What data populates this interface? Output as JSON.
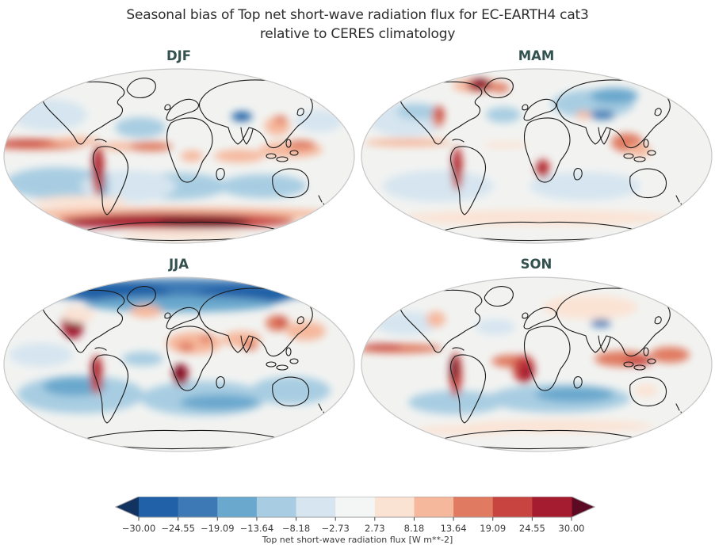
{
  "chart_data": {
    "type": "heatmap",
    "subtype": "global-filled-contour-maps",
    "projection": "robinson",
    "title_line1": "Seasonal bias of Top net short-wave radiation flux for EC-EARTH4 cat3",
    "title_line2": "relative to CERES climatology",
    "variable": "Top net short-wave radiation flux",
    "units": "W m**-2",
    "value_range": [
      -30.0,
      30.0
    ],
    "palette": {
      "b1": "#1f5fa6",
      "b2": "#3d7ab5",
      "b3": "#6aa8cd",
      "b4": "#a8cde2",
      "b5": "#d6e5f0",
      "w": "#f4f5f5",
      "r1": "#fbe3d4",
      "r2": "#f6b89c",
      "r3": "#e07a60",
      "r4": "#c84440",
      "r5": "#a51c30",
      "x": "#701022"
    },
    "colorbar": {
      "label": "Top net short-wave radiation flux [W m**-2]",
      "ticks": [
        "−30.00",
        "−24.55",
        "−19.09",
        "−13.64",
        "−8.18",
        "−2.73",
        "2.73",
        "8.18",
        "13.64",
        "19.09",
        "24.55",
        "30.00"
      ],
      "segment_colors": [
        "#2161a8",
        "#3d7ab5",
        "#6aa8cd",
        "#a8cde2",
        "#d6e5f0",
        "#f4f5f5",
        "#fbe3d4",
        "#f6b89c",
        "#e07a60",
        "#c84440",
        "#a51c30"
      ],
      "extend_left_color": "#12325f",
      "extend_right_color": "#5c0a23",
      "outline_color": "#9a9a9a"
    },
    "panels": [
      {
        "id": "djf",
        "label": "DJF",
        "features": [
          [
            60,
            62,
            48,
            20,
            "b5"
          ],
          [
            175,
            78,
            32,
            13,
            "b4"
          ],
          [
            400,
            70,
            30,
            14,
            "b5"
          ],
          [
            70,
            148,
            65,
            20,
            "b4"
          ],
          [
            220,
            152,
            65,
            17,
            "b4"
          ],
          [
            330,
            152,
            55,
            15,
            "b4"
          ],
          [
            160,
            152,
            60,
            20,
            "b5"
          ],
          [
            128,
            152,
            6,
            22,
            "b3"
          ],
          [
            303,
            64,
            13,
            6,
            "b1"
          ],
          [
            45,
            99,
            62,
            7,
            "r3"
          ],
          [
            28,
            98,
            30,
            4,
            "r4"
          ],
          [
            95,
            95,
            30,
            5,
            "r2"
          ],
          [
            150,
            102,
            25,
            5,
            "r2"
          ],
          [
            188,
            102,
            28,
            6,
            "r3"
          ],
          [
            240,
            114,
            14,
            7,
            "r2"
          ],
          [
            300,
            114,
            32,
            8,
            "r2"
          ],
          [
            365,
            106,
            40,
            10,
            "r2"
          ],
          [
            378,
            100,
            18,
            6,
            "r3"
          ],
          [
            122,
            132,
            8,
            32,
            "r4"
          ],
          [
            120,
            128,
            5,
            22,
            "r5"
          ],
          [
            348,
            76,
            16,
            12,
            "r2"
          ],
          [
            352,
            68,
            8,
            5,
            "r3"
          ],
          [
            100,
            172,
            60,
            8,
            "r1"
          ],
          [
            224,
            187,
            200,
            8,
            "r2"
          ],
          [
            220,
            196,
            150,
            10,
            "r4"
          ],
          [
            185,
            195,
            70,
            8,
            "r5"
          ],
          [
            255,
            197,
            60,
            7,
            "x"
          ],
          [
            120,
            198,
            40,
            6,
            "r5"
          ],
          [
            230,
            214,
            80,
            6,
            "r1"
          ]
        ]
      },
      {
        "id": "mam",
        "label": "MAM",
        "features": [
          [
            60,
            68,
            48,
            22,
            "b5"
          ],
          [
            75,
            58,
            28,
            10,
            "b4"
          ],
          [
            182,
            62,
            22,
            10,
            "b4"
          ],
          [
            295,
            48,
            52,
            18,
            "b4"
          ],
          [
            322,
            38,
            30,
            10,
            "b3"
          ],
          [
            307,
            62,
            16,
            6,
            "b2"
          ],
          [
            100,
            152,
            70,
            20,
            "b5"
          ],
          [
            285,
            152,
            70,
            18,
            "b5"
          ],
          [
            150,
            25,
            32,
            9,
            "r2"
          ],
          [
            152,
            24,
            16,
            8,
            "r5"
          ],
          [
            154,
            22,
            8,
            4,
            "x"
          ],
          [
            178,
            28,
            12,
            6,
            "r3"
          ],
          [
            100,
            64,
            8,
            14,
            "r3"
          ],
          [
            102,
            60,
            5,
            8,
            "r4"
          ],
          [
            124,
            130,
            7,
            28,
            "r4"
          ],
          [
            122,
            126,
            4,
            18,
            "r5"
          ],
          [
            232,
            130,
            9,
            12,
            "r4"
          ],
          [
            230,
            128,
            5,
            8,
            "r5"
          ],
          [
            338,
            97,
            20,
            12,
            "r3"
          ],
          [
            354,
            107,
            15,
            8,
            "r2"
          ],
          [
            62,
            97,
            55,
            5,
            "r2"
          ],
          [
            185,
            100,
            30,
            4,
            "r1"
          ],
          [
            283,
            62,
            10,
            5,
            "r2"
          ],
          [
            224,
            192,
            170,
            10,
            "r1"
          ]
        ]
      },
      {
        "id": "jja",
        "label": "JJA",
        "features": [
          [
            224,
            22,
            170,
            16,
            "b2"
          ],
          [
            152,
            24,
            60,
            12,
            "b1"
          ],
          [
            305,
            27,
            60,
            12,
            "b1"
          ],
          [
            224,
            38,
            120,
            10,
            "b3"
          ],
          [
            100,
            152,
            80,
            24,
            "b4"
          ],
          [
            255,
            157,
            80,
            22,
            "b4"
          ],
          [
            365,
            147,
            50,
            18,
            "b4"
          ],
          [
            92,
            142,
            40,
            12,
            "b3"
          ],
          [
            275,
            162,
            50,
            10,
            "b3"
          ],
          [
            178,
            107,
            26,
            9,
            "b4"
          ],
          [
            50,
            102,
            40,
            15,
            "b5"
          ],
          [
            90,
            62,
            14,
            20,
            "r5"
          ],
          [
            92,
            57,
            8,
            12,
            "x"
          ],
          [
            120,
            127,
            8,
            25,
            "r4"
          ],
          [
            118,
            122,
            5,
            15,
            "r5"
          ],
          [
            226,
            127,
            10,
            14,
            "r5"
          ],
          [
            224,
            124,
            6,
            9,
            "x"
          ],
          [
            243,
            87,
            35,
            14,
            "r2"
          ],
          [
            233,
            92,
            10,
            6,
            "r3"
          ],
          [
            258,
            82,
            8,
            5,
            "r3"
          ],
          [
            303,
            82,
            25,
            10,
            "r2"
          ],
          [
            313,
            90,
            10,
            6,
            "r3"
          ],
          [
            348,
            62,
            15,
            10,
            "r3"
          ],
          [
            352,
            60,
            6,
            5,
            "r4"
          ],
          [
            384,
            72,
            25,
            12,
            "r2"
          ],
          [
            182,
            47,
            20,
            8,
            "r2"
          ],
          [
            97,
            52,
            20,
            10,
            "r1"
          ]
        ]
      },
      {
        "id": "son",
        "label": "SON",
        "features": [
          [
            60,
            62,
            40,
            15,
            "b5"
          ],
          [
            172,
            67,
            25,
            10,
            "b5"
          ],
          [
            252,
            157,
            90,
            18,
            "b4"
          ],
          [
            122,
            162,
            60,
            15,
            "b4"
          ],
          [
            272,
            152,
            50,
            10,
            "b3"
          ],
          [
            305,
            62,
            13,
            5,
            "b2"
          ],
          [
            292,
            42,
            60,
            15,
            "r1"
          ],
          [
            50,
            94,
            55,
            6,
            "r3"
          ],
          [
            30,
            92,
            25,
            4,
            "r4"
          ],
          [
            122,
            127,
            8,
            28,
            "r4"
          ],
          [
            120,
            120,
            5,
            16,
            "x"
          ],
          [
            192,
            110,
            25,
            8,
            "r3"
          ],
          [
            208,
            120,
            14,
            18,
            "r4"
          ],
          [
            211,
            124,
            8,
            12,
            "r5"
          ],
          [
            332,
            107,
            35,
            10,
            "r3"
          ],
          [
            352,
            110,
            18,
            6,
            "r4"
          ],
          [
            392,
            102,
            25,
            10,
            "r3"
          ],
          [
            97,
            57,
            12,
            10,
            "r2"
          ],
          [
            362,
            147,
            15,
            8,
            "r1"
          ],
          [
            252,
            192,
            120,
            8,
            "r1"
          ],
          [
            132,
            197,
            60,
            6,
            "r1"
          ]
        ]
      }
    ]
  }
}
